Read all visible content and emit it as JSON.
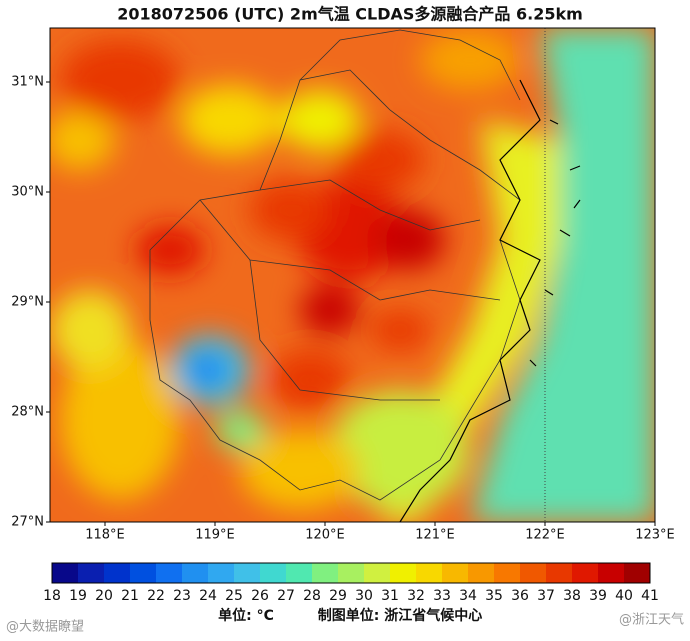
{
  "header": {
    "title": "2018072506 (UTC)   2m气温    CLDAS多源融合产品  6.25km"
  },
  "map": {
    "lat_labels": [
      "31°N",
      "30°N",
      "29°N",
      "28°N",
      "27°N"
    ],
    "lon_labels": [
      "118°E",
      "119°E",
      "120°E",
      "121°E",
      "122°E",
      "123°E"
    ]
  },
  "colorbar": {
    "ticks": [
      18,
      19,
      20,
      21,
      22,
      23,
      24,
      25,
      26,
      27,
      28,
      29,
      30,
      31,
      32,
      33,
      34,
      35,
      36,
      37,
      38,
      39,
      40,
      41
    ],
    "colors": [
      "#08088a",
      "#0a1fb0",
      "#0033cc",
      "#0050e0",
      "#1070f0",
      "#2090f0",
      "#30a8f0",
      "#40c0e8",
      "#40d8d0",
      "#50e8b0",
      "#80f080",
      "#a8f060",
      "#d0f040",
      "#f0f000",
      "#f8d800",
      "#f8b800",
      "#f89800",
      "#f87800",
      "#f05800",
      "#e83800",
      "#e01800",
      "#c80000",
      "#a00000"
    ]
  },
  "footer": {
    "unit": "单位: °C",
    "producer": "制图单位: 浙江省气候中心",
    "watermark_left": "@大数据瞭望",
    "watermark_right": "@浙江天气"
  }
}
